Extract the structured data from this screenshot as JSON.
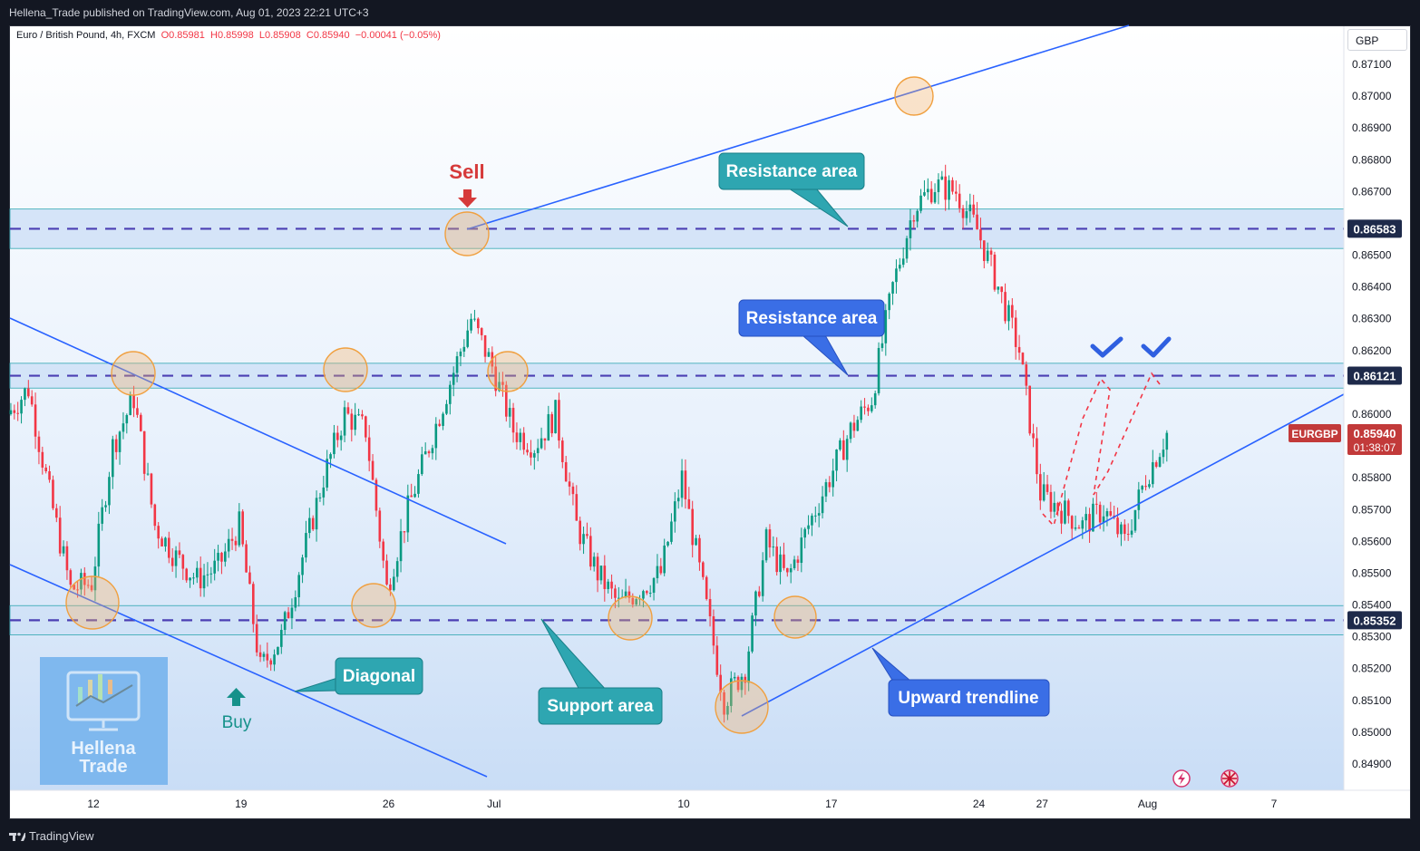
{
  "header": {
    "published": "Hellena_Trade published on TradingView.com, Aug 01, 2023 22:21 UTC+3"
  },
  "legend": {
    "symbol": "Euro / British Pound, 4h, FXCM",
    "open": "O0.85981",
    "high": "H0.85998",
    "low": "L0.85908",
    "close": "C0.85940",
    "change": "−0.00041 (−0.05%)"
  },
  "currency": "GBP",
  "footer": {
    "brand": "TradingView"
  },
  "logo": {
    "line1": "Hellena",
    "line2": "Trade"
  },
  "colors": {
    "up": "#089981",
    "down": "#f23645",
    "line": "#2962ff",
    "zone": "#cfe1f7",
    "dash": "#4b3fb3",
    "circle": "#f7b267",
    "label_teal": "#2ea6b1",
    "label_blue": "#3a6ee6",
    "badge_dark": "#1e2a4a",
    "badge_red": "#c23a3a"
  },
  "chart_data": {
    "type": "candlestick",
    "title": "Euro / British Pound, 4h, FXCM",
    "ylim": [
      0.8485,
      0.8715
    ],
    "y_ticks": [
      "0.87100",
      "0.87000",
      "0.86900",
      "0.86800",
      "0.86700",
      "0.86500",
      "0.86400",
      "0.86300",
      "0.86200",
      "0.86000",
      "0.85800",
      "0.85700",
      "0.85600",
      "0.85500",
      "0.85400",
      "0.85300",
      "0.85200",
      "0.85100",
      "0.85000",
      "0.84900"
    ],
    "x_ticks": [
      {
        "label": "12",
        "date": "2023-06-12"
      },
      {
        "label": "19",
        "date": "2023-06-19"
      },
      {
        "label": "26",
        "date": "2023-06-26"
      },
      {
        "label": "Jul",
        "date": "2023-07-01"
      },
      {
        "label": "10",
        "date": "2023-07-10"
      },
      {
        "label": "17",
        "date": "2023-07-17"
      },
      {
        "label": "24",
        "date": "2023-07-24"
      },
      {
        "label": "27",
        "date": "2023-07-27"
      },
      {
        "label": "Aug",
        "date": "2023-08-01"
      },
      {
        "label": "7",
        "date": "2023-08-07"
      }
    ],
    "price_path": [
      [
        "2023-06-08",
        0.86
      ],
      [
        "2023-06-09",
        0.8608
      ],
      [
        "2023-06-10",
        0.8575
      ],
      [
        "2023-06-11",
        0.8545
      ],
      [
        "2023-06-12",
        0.8547
      ],
      [
        "2023-06-13",
        0.859
      ],
      [
        "2023-06-14",
        0.8605
      ],
      [
        "2023-06-15",
        0.8565
      ],
      [
        "2023-06-16",
        0.8555
      ],
      [
        "2023-06-17",
        0.8548
      ],
      [
        "2023-06-18",
        0.8552
      ],
      [
        "2023-06-19",
        0.8565
      ],
      [
        "2023-06-20",
        0.852
      ],
      [
        "2023-06-21",
        0.853
      ],
      [
        "2023-06-22",
        0.8555
      ],
      [
        "2023-06-23",
        0.858
      ],
      [
        "2023-06-24",
        0.86
      ],
      [
        "2023-06-25",
        0.8595
      ],
      [
        "2023-06-26",
        0.8545
      ],
      [
        "2023-06-27",
        0.857
      ],
      [
        "2023-06-28",
        0.859
      ],
      [
        "2023-06-29",
        0.861
      ],
      [
        "2023-06-30",
        0.863
      ],
      [
        "2023-07-01",
        0.8615
      ],
      [
        "2023-07-02",
        0.8595
      ],
      [
        "2023-07-03",
        0.859
      ],
      [
        "2023-07-04",
        0.86
      ],
      [
        "2023-07-05",
        0.8565
      ],
      [
        "2023-07-06",
        0.855
      ],
      [
        "2023-07-07",
        0.854
      ],
      [
        "2023-07-08",
        0.8545
      ],
      [
        "2023-07-09",
        0.855
      ],
      [
        "2023-07-10",
        0.858
      ],
      [
        "2023-07-11",
        0.8545
      ],
      [
        "2023-07-12",
        0.851
      ],
      [
        "2023-07-13",
        0.852
      ],
      [
        "2023-07-14",
        0.856
      ],
      [
        "2023-07-15",
        0.8548
      ],
      [
        "2023-07-16",
        0.8565
      ],
      [
        "2023-07-17",
        0.858
      ],
      [
        "2023-07-18",
        0.8595
      ],
      [
        "2023-07-19",
        0.8605
      ],
      [
        "2023-07-20",
        0.864
      ],
      [
        "2023-07-21",
        0.8665
      ],
      [
        "2023-07-22",
        0.8672
      ],
      [
        "2023-07-23",
        0.867
      ],
      [
        "2023-07-24",
        0.8658
      ],
      [
        "2023-07-25",
        0.864
      ],
      [
        "2023-07-26",
        0.862
      ],
      [
        "2023-07-27",
        0.8575
      ],
      [
        "2023-07-28",
        0.857
      ],
      [
        "2023-07-29",
        0.8565
      ],
      [
        "2023-07-30",
        0.857
      ],
      [
        "2023-07-31",
        0.856
      ],
      [
        "2023-08-01",
        0.858
      ],
      [
        "2023-08-02",
        0.8594
      ]
    ],
    "horizontal_levels": [
      {
        "label": "0.86583",
        "value": 0.86583
      },
      {
        "label": "0.86121",
        "value": 0.86121
      },
      {
        "label": "0.85352",
        "value": 0.85352
      }
    ],
    "current_price": {
      "symbol": "EURGBP",
      "label": "0.85940",
      "value": 0.8594,
      "countdown": "01:38:07"
    },
    "annotations": [
      {
        "text": "Sell",
        "color": "#d63a3a"
      },
      {
        "text": "Buy",
        "color": "#15918a"
      },
      {
        "text": "Resistance area",
        "style": "teal"
      },
      {
        "text": "Resistance area",
        "style": "blue"
      },
      {
        "text": "Support area",
        "style": "teal"
      },
      {
        "text": "Diagonal",
        "style": "teal"
      },
      {
        "text": "Upward trendline",
        "style": "blue"
      }
    ]
  }
}
